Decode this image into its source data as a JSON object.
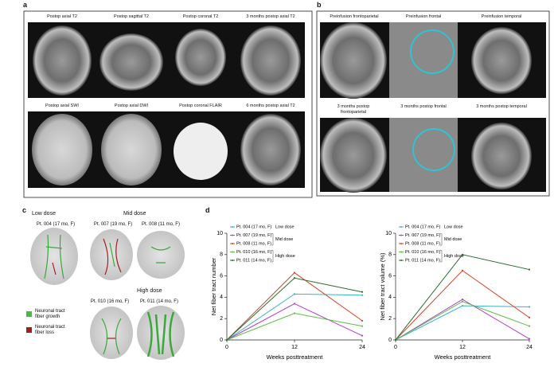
{
  "panels": {
    "a": {
      "label": "a",
      "images": [
        "Postop axial T2",
        "Postop sagittal T2",
        "Postop coronal T2",
        "3 months postop axial T2",
        "Postop axial SWI",
        "Postop axial DWI",
        "Postop coronal FLAIR",
        "6 months postop axial T2"
      ]
    },
    "b": {
      "label": "b",
      "images": [
        "Preinfusion frontoparietal",
        "Preinfusion frontal",
        "Preinfusion temporal",
        "3 months postop frontoparietal",
        "3 months postop frontal",
        "3 months postop temporal"
      ]
    },
    "c": {
      "label": "c",
      "groups": [
        {
          "dose": "Low dose",
          "patients": [
            "Pt. 004 (17 mo, F)"
          ]
        },
        {
          "dose": "Mid dose",
          "patients": [
            "Pt. 007 (19 mo, F)",
            "Pt. 008 (11 mo, F)"
          ]
        },
        {
          "dose": "High dose",
          "patients": [
            "Pt. 010 (16 mo, F)",
            "Pt. 011 (14 mo, F)"
          ]
        }
      ],
      "legend": [
        "Neuronal tract fiber growth",
        "Neuronal tract fiber loss"
      ]
    },
    "d": {
      "label": "d"
    }
  },
  "chart_data": [
    {
      "type": "line",
      "ylabel": "Net fiber tract number",
      "xlabel": "Weeks posttreatment",
      "x": [
        0,
        12,
        24
      ],
      "xlim": [
        0,
        24
      ],
      "xticks": [
        0,
        12,
        24
      ],
      "ylim": [
        0,
        10
      ],
      "yticks": [
        0,
        2,
        4,
        6,
        8,
        10
      ],
      "dose_groups": [
        "Low dose",
        "Mid dose",
        "High dose"
      ],
      "series": [
        {
          "name": "Pt. 004 (17 mo, F)",
          "color": "#3bb3c9",
          "values": [
            0,
            4.3,
            4.2
          ]
        },
        {
          "name": "Pt. 007 (19 mo, F)",
          "color": "#b23fc4",
          "values": [
            0,
            3.4,
            0.4
          ]
        },
        {
          "name": "Pt. 008 (11 mo, F)",
          "color": "#d9402c",
          "values": [
            0,
            6.3,
            1.8
          ]
        },
        {
          "name": "Pt. 010 (16 mo, F)",
          "color": "#5cbf45",
          "values": [
            0,
            2.5,
            1.3
          ]
        },
        {
          "name": "Pt. 011 (14 mo, F)",
          "color": "#2d6b2d",
          "values": [
            0,
            5.8,
            4.5
          ]
        }
      ]
    },
    {
      "type": "line",
      "ylabel": "Net fiber tract volume (%)",
      "xlabel": "Weeks posttreatment",
      "x": [
        0,
        12,
        24
      ],
      "xlim": [
        0,
        24
      ],
      "xticks": [
        0,
        12,
        24
      ],
      "ylim": [
        0,
        10
      ],
      "yticks": [
        0,
        2,
        4,
        6,
        8,
        10
      ],
      "dose_groups": [
        "Low dose",
        "Mid dose",
        "High dose"
      ],
      "series": [
        {
          "name": "Pt. 004 (17 mo, F)",
          "color": "#3bb3c9",
          "values": [
            0,
            3.2,
            3.1
          ]
        },
        {
          "name": "Pt. 007 (19 mo, F)",
          "color": "#b23fc4",
          "values": [
            0,
            3.8,
            0.1
          ]
        },
        {
          "name": "Pt. 008 (11 mo, F)",
          "color": "#d9402c",
          "values": [
            0,
            6.5,
            2.1
          ]
        },
        {
          "name": "Pt. 010 (16 mo, F)",
          "color": "#5cbf45",
          "values": [
            0,
            3.6,
            1.3
          ]
        },
        {
          "name": "Pt. 011 (14 mo, F)",
          "color": "#2d6b2d",
          "values": [
            0,
            8.0,
            6.6
          ]
        }
      ]
    }
  ]
}
